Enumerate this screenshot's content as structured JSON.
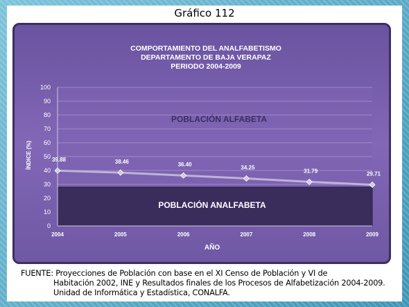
{
  "slide_title": "Gráfico 112",
  "chart_data": {
    "type": "line",
    "title": "COMPORTAMIENTO DEL ANALFABETISMO",
    "subtitle": "DEPARTAMENTO DE BAJA VERAPAZ",
    "subtitle2": "PERIODO 2004-2009",
    "xlabel": "AÑO",
    "ylabel": "ÍNDICE (%)",
    "ylim": [
      0,
      100
    ],
    "yticks": [
      "0",
      "10",
      "20",
      "30",
      "40",
      "50",
      "60",
      "70",
      "80",
      "90",
      "100"
    ],
    "grid": true,
    "categories": [
      "2004",
      "2005",
      "2006",
      "2007",
      "2008",
      "2009"
    ],
    "values": [
      39.88,
      38.46,
      36.4,
      34.25,
      31.79,
      29.71
    ],
    "value_labels": [
      "39.88",
      "38.46",
      "36.40",
      "34.25",
      "31.79",
      "29.71"
    ],
    "region_upper_label": "POBLACIÓN ALFABETA",
    "region_lower_label": "POBLACIÓN ANALFABETA",
    "colors": {
      "line": "#bdb4d6",
      "marker": "#cfc8e6",
      "lower_band": "#3a2d5c"
    }
  },
  "source": {
    "line1": "FUENTE: Proyecciones de Población con base en el XI Censo de Población y VI de",
    "line2": "Habitación 2002, INE y Resultados finales de los Procesos de Alfabetización 2004-2009.",
    "line3": "Unidad de Informática y Estadística, CONALFA."
  }
}
